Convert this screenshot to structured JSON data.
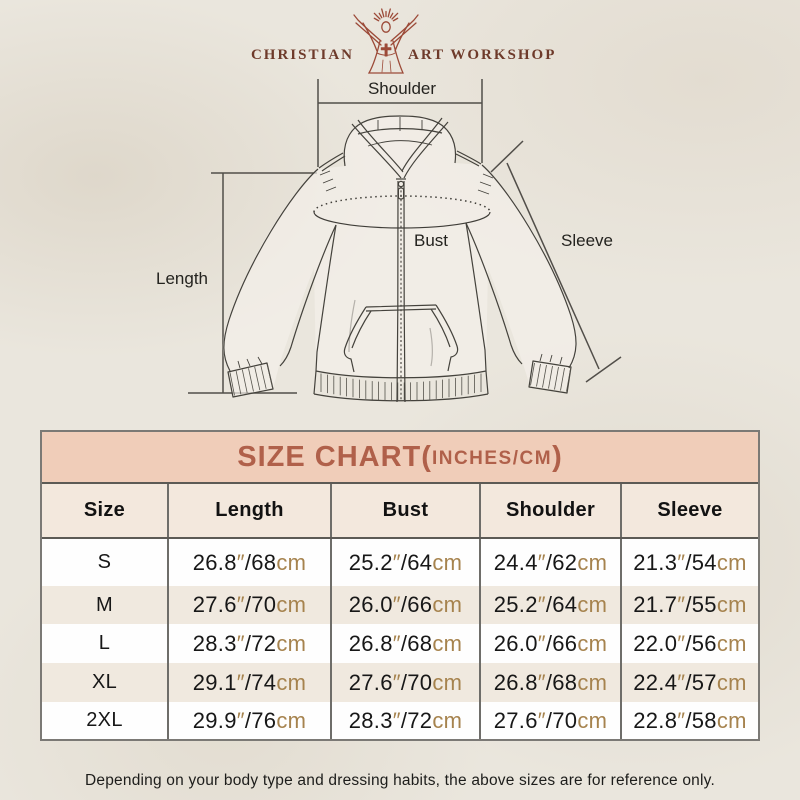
{
  "logo": {
    "left": "CHRISTIAN",
    "right": "ART WORKSHOP",
    "icon": "jesus-rays-figure-icon"
  },
  "diagram": {
    "labels": {
      "shoulder": "Shoulder",
      "bust": "Bust",
      "sleeve": "Sleeve",
      "length": "Length"
    }
  },
  "table": {
    "title": {
      "main": "SIZE CHART",
      "open": "(",
      "inner": "INCHES/CM",
      "close": ")"
    },
    "columns": [
      "Size",
      "Length",
      "Bust",
      "Shoulder",
      "Sleeve"
    ],
    "units": {
      "inch_mark": "″",
      "slash": "/",
      "cm_label": "cm"
    },
    "rows": [
      {
        "size": "S",
        "measurements": [
          {
            "in": "26.8",
            "cm": "68"
          },
          {
            "in": "25.2",
            "cm": "64"
          },
          {
            "in": "24.4",
            "cm": "62"
          },
          {
            "in": "21.3",
            "cm": "54"
          }
        ]
      },
      {
        "size": "M",
        "measurements": [
          {
            "in": "27.6",
            "cm": "70"
          },
          {
            "in": "26.0",
            "cm": "66"
          },
          {
            "in": "25.2",
            "cm": "64"
          },
          {
            "in": "21.7",
            "cm": "55"
          }
        ]
      },
      {
        "size": "L",
        "measurements": [
          {
            "in": "28.3",
            "cm": "72"
          },
          {
            "in": "26.8",
            "cm": "68"
          },
          {
            "in": "26.0",
            "cm": "66"
          },
          {
            "in": "22.0",
            "cm": "56"
          }
        ]
      },
      {
        "size": "XL",
        "measurements": [
          {
            "in": "29.1",
            "cm": "74"
          },
          {
            "in": "27.6",
            "cm": "70"
          },
          {
            "in": "26.8",
            "cm": "68"
          },
          {
            "in": "22.4",
            "cm": "57"
          }
        ]
      },
      {
        "size": "2XL",
        "measurements": [
          {
            "in": "29.9",
            "cm": "76"
          },
          {
            "in": "28.3",
            "cm": "72"
          },
          {
            "in": "27.6",
            "cm": "70"
          },
          {
            "in": "22.8",
            "cm": "58"
          }
        ]
      }
    ]
  },
  "note": "Depending on your body type and dressing habits, the above sizes are for reference only.",
  "colors": {
    "page_background": "#eae6dd",
    "title_band_background": "#f0cdb9",
    "title_band_text": "#b0604a",
    "header_row_background": "#f3e8dd",
    "alt_row_background": "#f0e9df",
    "unit_accent": "#a6834e",
    "table_border": "#6e6d69",
    "logo_figure": "#9c4a38",
    "logo_text": "#6e3a2a"
  }
}
